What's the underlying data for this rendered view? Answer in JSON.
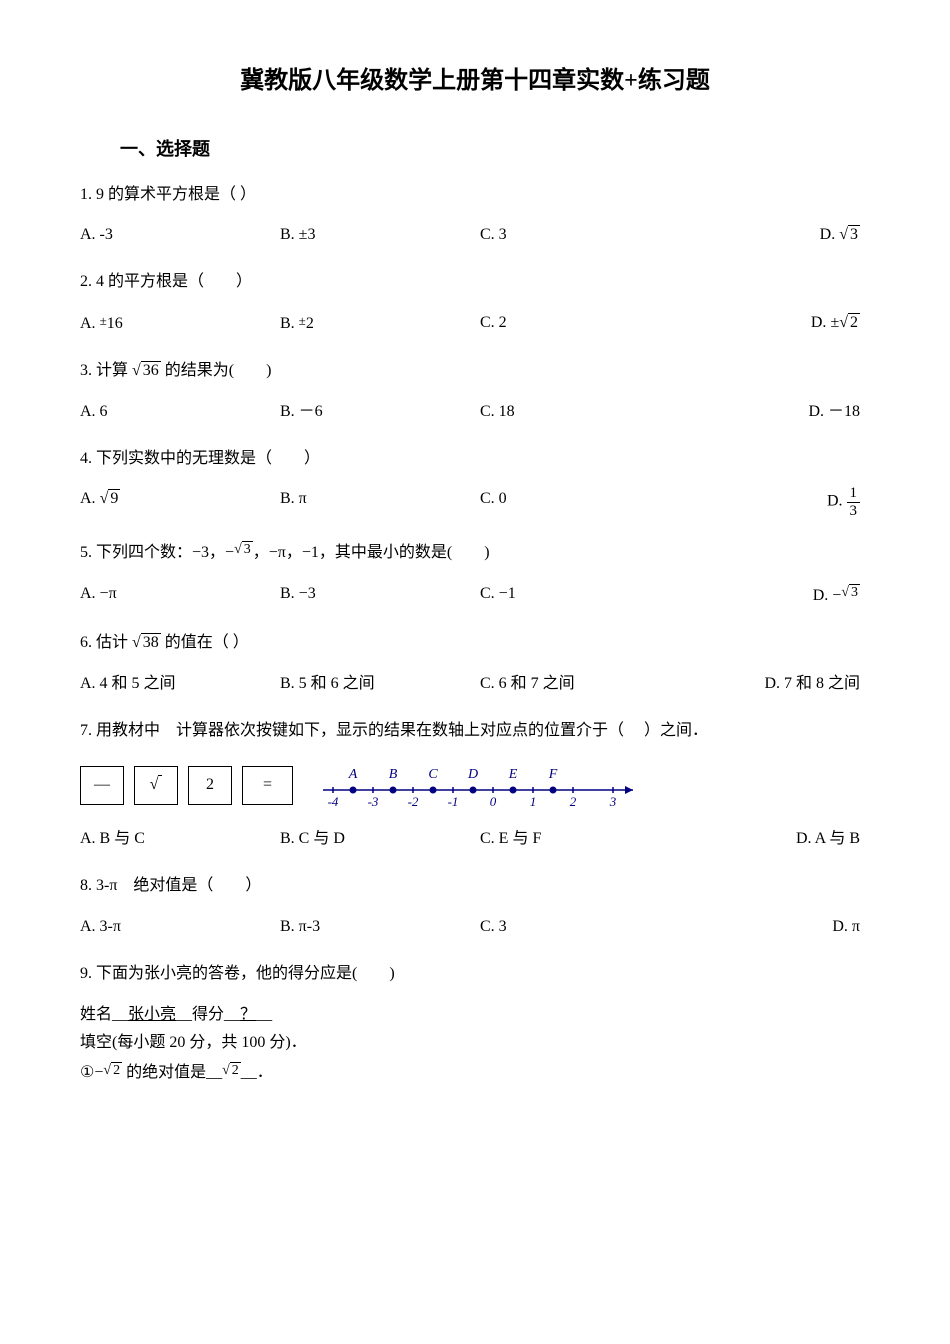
{
  "title": "冀教版八年级数学上册第十四章实数+练习题",
  "section1": "一、选择题",
  "q1": {
    "text": "1. 9 的算术平方根是（ ）",
    "a": "A. ‐3",
    "b": "B. ±3",
    "c": "C. 3",
    "d_prefix": "D. ",
    "d_radicand": "3"
  },
  "q2": {
    "text": "2. 4 的平方根是（　　）",
    "a_prefix": "A. ",
    "a_pm": "±",
    "a_val": "16",
    "b_prefix": "B. ",
    "b_pm": "±",
    "b_val": "2",
    "c": "C. 2",
    "d_prefix": "D. ",
    "d_pm": "±",
    "d_radicand": "2"
  },
  "q3": {
    "prefix": "3. 计算 ",
    "radicand": "36",
    "suffix": " 的结果为(　　)",
    "a": "A. 6",
    "b": "B. －6",
    "c": "C. 18",
    "d": "D. －18"
  },
  "q4": {
    "text": "4. 下列实数中的无理数是（　　）",
    "a_prefix": "A. ",
    "a_radicand": "9",
    "b": "B. π",
    "c": "C. 0",
    "d_prefix": "D. ",
    "d_num": "1",
    "d_den": "3"
  },
  "q5": {
    "prefix": "5. 下列四个数：−3，",
    "mid1": "−",
    "radicand": "3",
    "suffix": "，−π，−1，其中最小的数是(　　)",
    "a": "A. −π",
    "b": "B. −3",
    "c": "C. −1",
    "d_prefix": "D. −",
    "d_radicand": "3"
  },
  "q6": {
    "prefix": "6. 估计 ",
    "radicand": "38",
    "suffix": " 的值在（ ）",
    "a": "A. 4 和 5 之间",
    "b": "B. 5 和 6 之间",
    "c": "C. 6 和 7 之间",
    "d": "D. 7 和 8 之间"
  },
  "q7": {
    "text": "7. 用教材中　计算器依次按键如下，显示的结果在数轴上对应点的位置介于（　 ）之间．",
    "btn1": "—",
    "btn2_radicand": " ",
    "btn3": "2",
    "btn4": "=",
    "numline": {
      "labels": [
        "A",
        "B",
        "C",
        "D",
        "E",
        "F"
      ],
      "values": [
        "-4",
        "-3",
        "-2",
        "-1",
        "0",
        "1",
        "2",
        "3"
      ],
      "point_color": "#000080"
    },
    "a": "A. B 与 C",
    "b": "B. C 与 D",
    "c": "C. E 与 F",
    "d": "D. A 与 B"
  },
  "q8": {
    "text": "8. 3‐π　绝对值是（　　）",
    "a": "A. 3‐π",
    "b": "B. π‐3",
    "c": "C. 3",
    "d": "D. π"
  },
  "q9": {
    "text": "9. 下面为张小亮的答卷，他的得分应是(　　)",
    "name_label": "姓名__",
    "name_val": "张小亮",
    "score_label": "__得分__",
    "score_val": "？",
    "score_suffix": "__",
    "fill_text": "填空(每小题 20 分，共 100 分)．",
    "item1_prefix": "①−",
    "item1_radicand1": "2",
    "item1_mid": " 的绝对值是__",
    "item1_radicand2": "2",
    "item1_suffix": "__．"
  }
}
